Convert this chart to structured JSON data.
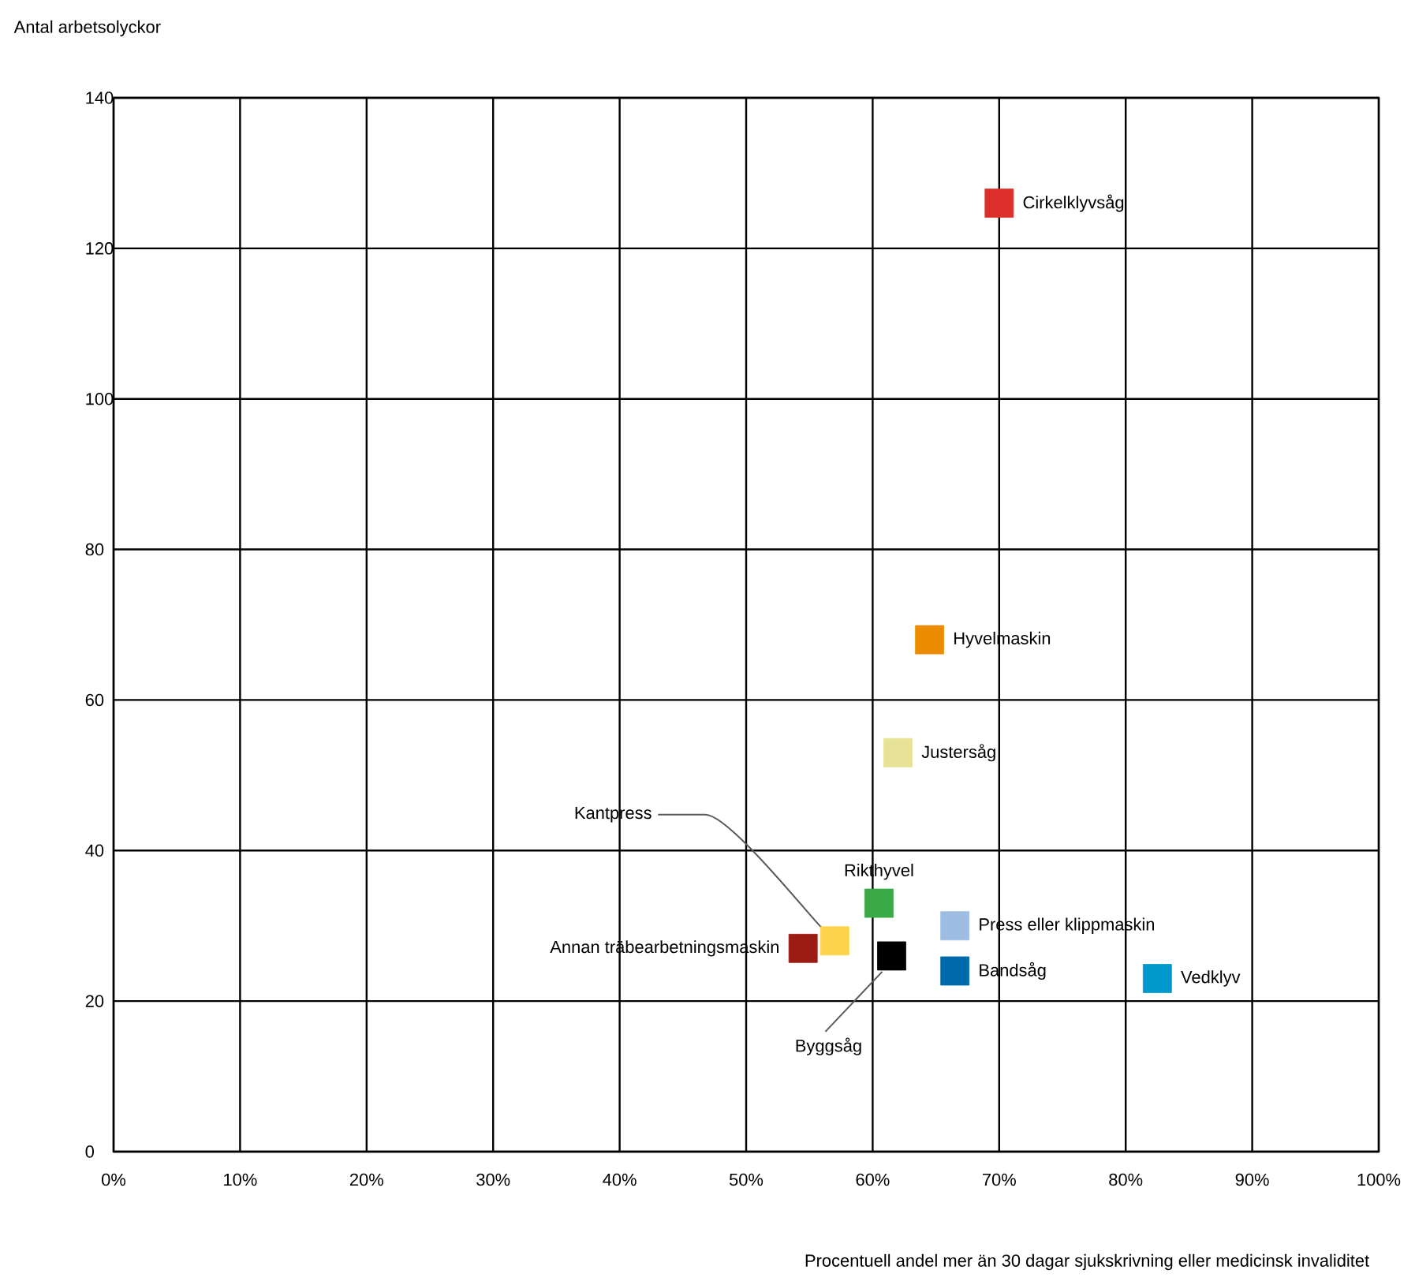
{
  "chart_data": {
    "type": "scatter",
    "xlabel": "Procentuell andel mer än 30 dagar sjukskrivning eller medicinsk invaliditet",
    "ylabel": "Antal arbetsolyckor",
    "xlim": [
      0,
      100
    ],
    "ylim": [
      0,
      140
    ],
    "xticks": [
      {
        "value": 0,
        "label": "0%"
      },
      {
        "value": 10,
        "label": "10%"
      },
      {
        "value": 20,
        "label": "20%"
      },
      {
        "value": 30,
        "label": "30%"
      },
      {
        "value": 40,
        "label": "40%"
      },
      {
        "value": 50,
        "label": "50%"
      },
      {
        "value": 60,
        "label": "60%"
      },
      {
        "value": 70,
        "label": "70%"
      },
      {
        "value": 80,
        "label": "80%"
      },
      {
        "value": 90,
        "label": "90%"
      },
      {
        "value": 100,
        "label": "100%"
      }
    ],
    "yticks": [
      0,
      20,
      40,
      60,
      80,
      100,
      120,
      140
    ],
    "grid": true,
    "legend": false,
    "marker": "square",
    "series": [
      {
        "name": "Cirkelklyvsåg",
        "color": "#dc2f2a",
        "x": [
          70
        ],
        "values": [
          126
        ]
      },
      {
        "name": "Hyvelmaskin",
        "color": "#ec8c00",
        "x": [
          64.5
        ],
        "values": [
          68
        ]
      },
      {
        "name": "Justersåg",
        "color": "#e6e396",
        "x": [
          62
        ],
        "values": [
          53
        ]
      },
      {
        "name": "Rikthyvel",
        "color": "#3aaa46",
        "x": [
          60.5
        ],
        "values": [
          33
        ]
      },
      {
        "name": "Press eller klippmaskin",
        "color": "#9dbde3",
        "x": [
          66.5
        ],
        "values": [
          30
        ]
      },
      {
        "name": "Kantpress",
        "color": "#fcd44c",
        "x": [
          57
        ],
        "values": [
          28
        ]
      },
      {
        "name": "Annan träbearbetningsmaskin",
        "color": "#9c1c14",
        "x": [
          54.5
        ],
        "values": [
          27
        ]
      },
      {
        "name": "Byggsåg",
        "color": "#000000",
        "x": [
          61.5
        ],
        "values": [
          26
        ]
      },
      {
        "name": "Bandsåg",
        "color": "#0069aa",
        "x": [
          66.5
        ],
        "values": [
          24
        ]
      },
      {
        "name": "Vedklyv",
        "color": "#0099cc",
        "x": [
          82.5
        ],
        "values": [
          23
        ]
      }
    ]
  }
}
